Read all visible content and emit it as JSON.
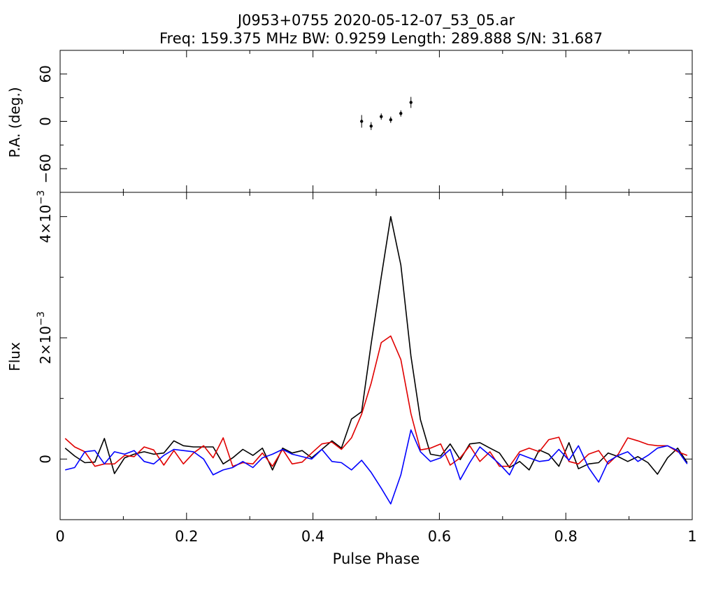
{
  "chart_data": {
    "type": "line",
    "title": "J0953+0755 2020-05-12-07_53_05.ar",
    "subtitle": "Freq: 159.375 MHz BW: 0.9259 Length: 289.888 S/N: 31.687",
    "xlabel": "Pulse Phase",
    "xlim": [
      0,
      1
    ],
    "x_ticks": [
      "0",
      "0.2",
      "0.4",
      "0.6",
      "0.8",
      "1"
    ],
    "pa_panel": {
      "ylabel": "P.A. (deg.)",
      "ylim": [
        -90,
        90
      ],
      "y_ticks": [
        "−60",
        "0",
        "60"
      ],
      "points": [
        {
          "x": 0.477,
          "y": 0,
          "err": 8
        },
        {
          "x": 0.492,
          "y": -6,
          "err": 5
        },
        {
          "x": 0.508,
          "y": 6,
          "err": 4
        },
        {
          "x": 0.523,
          "y": 2,
          "err": 4
        },
        {
          "x": 0.539,
          "y": 10,
          "err": 4
        },
        {
          "x": 0.555,
          "y": 24,
          "err": 7
        }
      ]
    },
    "flux_panel": {
      "ylabel": "Flux",
      "ylim": [
        -0.001,
        0.0044
      ],
      "y_ticks": [
        {
          "value": 0,
          "base": "0",
          "exp": ""
        },
        {
          "value": 0.002,
          "base": "2×10",
          "exp": "−3"
        },
        {
          "value": 0.004,
          "base": "4×10",
          "exp": "−3"
        }
      ],
      "x": [
        0.008,
        0.023,
        0.039,
        0.055,
        0.07,
        0.086,
        0.102,
        0.117,
        0.133,
        0.148,
        0.164,
        0.18,
        0.195,
        0.211,
        0.227,
        0.242,
        0.258,
        0.273,
        0.289,
        0.305,
        0.32,
        0.336,
        0.352,
        0.367,
        0.383,
        0.398,
        0.414,
        0.43,
        0.445,
        0.461,
        0.477,
        0.492,
        0.508,
        0.523,
        0.539,
        0.555,
        0.57,
        0.586,
        0.602,
        0.617,
        0.633,
        0.648,
        0.664,
        0.68,
        0.695,
        0.711,
        0.727,
        0.742,
        0.758,
        0.773,
        0.789,
        0.805,
        0.82,
        0.836,
        0.852,
        0.867,
        0.883,
        0.898,
        0.914,
        0.93,
        0.945,
        0.961,
        0.977,
        0.992
      ],
      "series": [
        {
          "color": "#000000",
          "values": [
            0.00018,
            5e-05,
            -6e-05,
            -5e-05,
            0.00034,
            -0.00024,
            2e-05,
            8e-05,
            0.00012,
            8e-05,
            0.0001,
            0.0003,
            0.00022,
            0.0002,
            0.0002,
            0.0002,
            -8e-05,
            2e-05,
            0.00016,
            6e-05,
            0.00018,
            -0.00018,
            0.00018,
            0.0001,
            0.00014,
            2e-05,
            0.00016,
            0.0003,
            0.00018,
            0.00066,
            0.00078,
            0.0019,
            0.003,
            0.004,
            0.0032,
            0.0017,
            0.00065,
            8e-05,
            5e-05,
            0.00025,
            -1e-05,
            0.00025,
            0.00027,
            0.00018,
            0.0001,
            -0.00014,
            -4e-05,
            -0.00018,
            0.00015,
            8e-05,
            -0.00012,
            0.00027,
            -0.00016,
            -8e-05,
            -6e-05,
            0.0001,
            4e-05,
            -4e-05,
            4e-05,
            -6e-05,
            -0.00025,
            2e-05,
            0.00018,
            -6e-05
          ]
        },
        {
          "color": "#e00000",
          "values": [
            0.00034,
            0.0002,
            0.00012,
            -0.00012,
            -8e-05,
            -8e-05,
            6e-05,
            4e-05,
            0.0002,
            0.00015,
            -0.0001,
            0.00014,
            -8e-05,
            0.0001,
            0.00022,
            2e-05,
            0.00035,
            -0.00012,
            -6e-05,
            -8e-05,
            0.0001,
            -0.00012,
            0.00016,
            -8e-05,
            -5e-05,
            0.0001,
            0.00025,
            0.00028,
            0.00016,
            0.00035,
            0.00074,
            0.00125,
            0.00192,
            0.00203,
            0.00164,
            0.00075,
            0.00015,
            0.00018,
            0.00025,
            -0.0001,
            2e-05,
            0.00022,
            -4e-05,
            0.00012,
            -0.00012,
            -0.00012,
            0.00012,
            0.00018,
            0.00012,
            0.00032,
            0.00036,
            -4e-05,
            -8e-05,
            8e-05,
            0.00014,
            -8e-05,
            8e-05,
            0.00035,
            0.0003,
            0.00024,
            0.00022,
            0.00022,
            0.00012,
            6e-05
          ]
        },
        {
          "color": "#0000ff",
          "values": [
            -0.00018,
            -0.00014,
            0.00012,
            0.00014,
            -8e-05,
            0.00012,
            8e-05,
            0.00014,
            -4e-05,
            -8e-05,
            6e-05,
            0.00016,
            0.00014,
            0.00012,
            0.0,
            -0.00026,
            -0.00018,
            -0.00014,
            -4e-05,
            -0.00014,
            2e-05,
            8e-05,
            0.00016,
            8e-05,
            4e-05,
            0.0,
            0.00016,
            -4e-05,
            -6e-05,
            -0.00018,
            -2e-05,
            -0.00022,
            -0.00048,
            -0.00074,
            -0.00026,
            0.00048,
            0.00012,
            -4e-05,
            2e-05,
            0.00016,
            -0.00034,
            -6e-05,
            0.0002,
            6e-05,
            -8e-05,
            -0.00026,
            8e-05,
            2e-05,
            -4e-05,
            -2e-05,
            0.00016,
            -2e-05,
            0.00022,
            -0.00014,
            -0.00038,
            -4e-05,
            6e-05,
            0.00012,
            -4e-05,
            6e-05,
            0.00018,
            0.00022,
            0.00014,
            -8e-05
          ]
        }
      ]
    }
  }
}
